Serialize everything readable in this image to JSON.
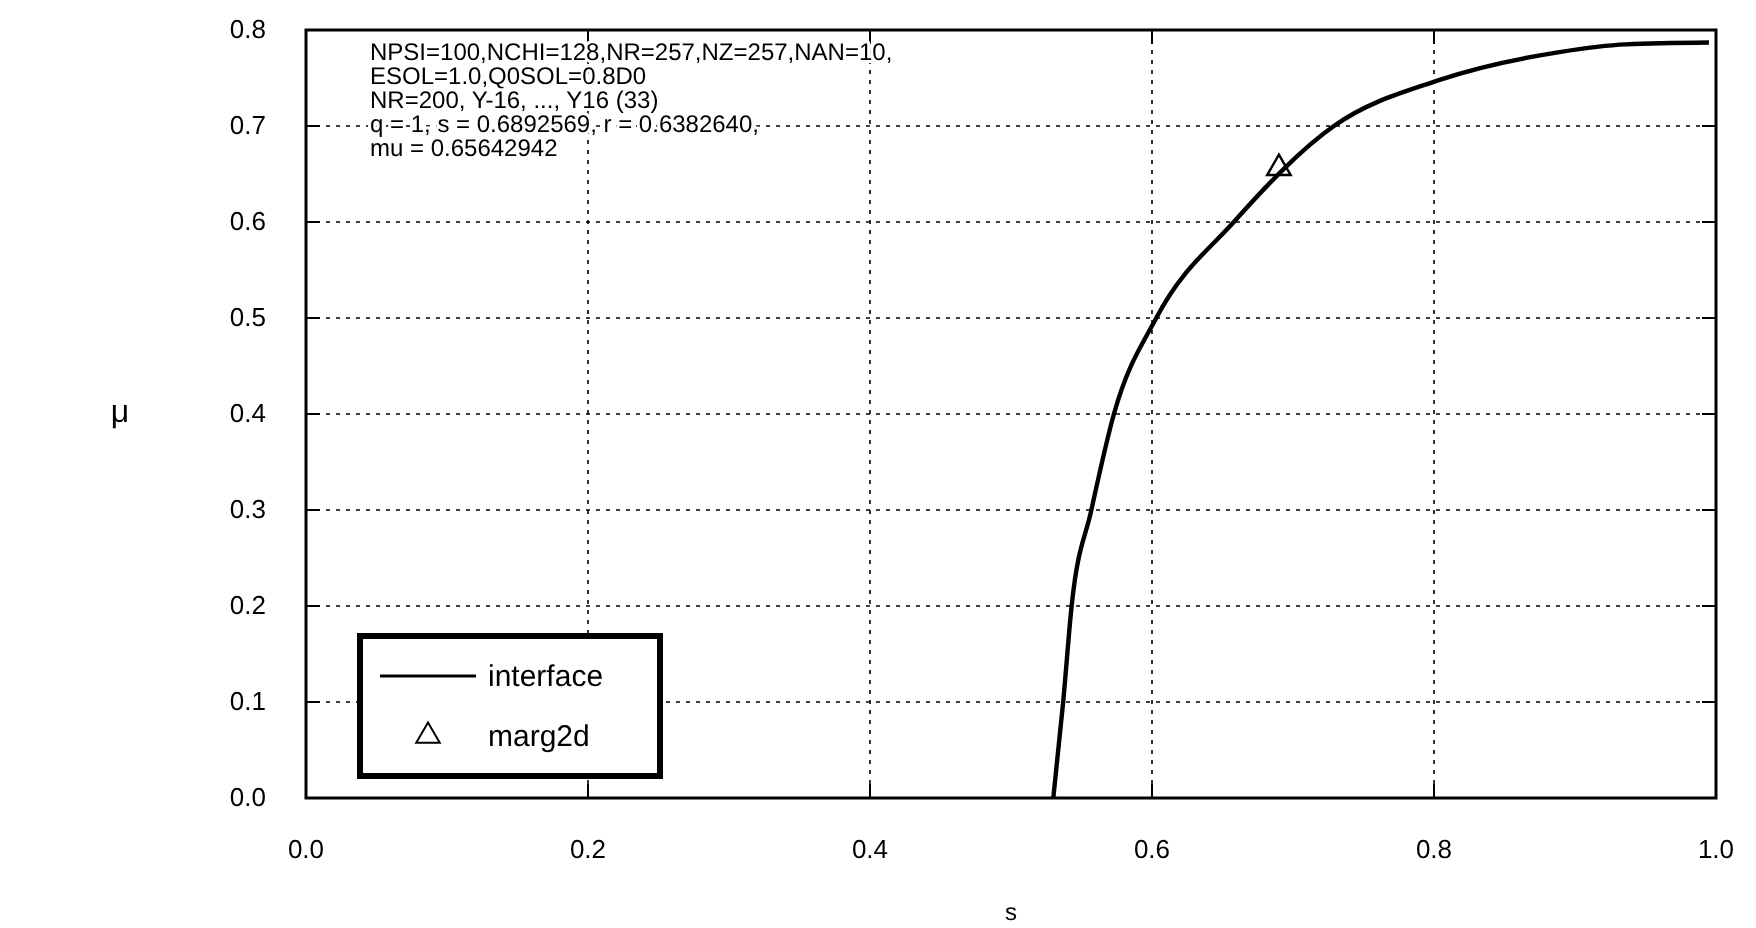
{
  "chart_data": {
    "type": "line",
    "xlabel": "s",
    "ylabel": "μ",
    "xlim": [
      0,
      1
    ],
    "ylim": [
      0,
      0.8
    ],
    "xticks": [
      {
        "value": 0,
        "label": "0.0"
      },
      {
        "value": 0.2,
        "label": "0.2"
      },
      {
        "value": 0.4,
        "label": "0.4"
      },
      {
        "value": 0.6,
        "label": "0.6"
      },
      {
        "value": 0.8,
        "label": "0.8"
      },
      {
        "value": 1,
        "label": "1.0"
      }
    ],
    "yticks": [
      {
        "value": 0,
        "label": "0.0"
      },
      {
        "value": 0.1,
        "label": "0.1"
      },
      {
        "value": 0.2,
        "label": "0.2"
      },
      {
        "value": 0.3,
        "label": "0.3"
      },
      {
        "value": 0.4,
        "label": "0.4"
      },
      {
        "value": 0.5,
        "label": "0.5"
      },
      {
        "value": 0.6,
        "label": "0.6"
      },
      {
        "value": 0.7,
        "label": "0.7"
      },
      {
        "value": 0.8,
        "label": "0.8"
      }
    ],
    "grid": true,
    "legend": "bottom left",
    "series": [
      {
        "name": "interface",
        "color": "#000000",
        "marker": "none",
        "x": [
          0.53,
          0.537,
          0.543,
          0.557,
          0.573,
          0.603,
          0.658,
          0.729,
          0.804,
          0.889,
          0.936,
          0.995
        ],
        "values": [
          0,
          0.1,
          0.2,
          0.3,
          0.4,
          0.5,
          0.6,
          0.7,
          0.748,
          0.777,
          0.785,
          0.787
        ]
      },
      {
        "name": "marg2d",
        "type": "scatter",
        "color": "#000000",
        "marker": "triangle",
        "x": [
          0.69
        ],
        "values": [
          0.656
        ]
      }
    ],
    "annotations": [
      "NPSI=100,NCHI=128,NR=257,NZ=257,NAN=10,",
      "ESOL=1.0,Q0SOL=0.8D0",
      "NR=200, Y-16, ..., Y16 (33)",
      "q = 1, s = 0.6892569, r = 0.6382640,",
      "mu = 0.65642942"
    ]
  }
}
